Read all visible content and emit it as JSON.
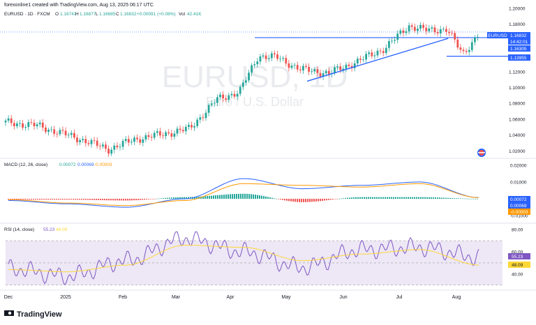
{
  "header": {
    "credit": "forexonline1 created with TradingView.com, Aug 13, 2025 06:17 UTC",
    "symbol_line": "EURUSD · 1D · FXCM",
    "ohlc": {
      "o_label": "O",
      "o": "1.16741",
      "h_label": "H",
      "h": "1.16877",
      "l_label": "L",
      "l": "1.16685",
      "c_label": "C",
      "c": "1.16832",
      "change": "+0.00091 (+0.08%)",
      "vol_label": "Vol",
      "vol": "42.41K"
    }
  },
  "watermark": {
    "symbol": "EURUSD, 1D",
    "description": "Euro / U.S. Dollar"
  },
  "price_axis": {
    "ticks": [
      "1.20000",
      "1.18000",
      "1.16000",
      "1.14000",
      "1.12000",
      "1.10000",
      "1.08000",
      "1.06000",
      "1.04000",
      "1.02000"
    ]
  },
  "price_labels": {
    "symbol_tag": "EURUSD",
    "last_price": "1.16832",
    "countdown": "14:42:01",
    "level_1": "1.16305",
    "level_2": "1.13955"
  },
  "macd": {
    "label": "MACD (12, 26, close)",
    "values": [
      "0.00072",
      "0.00069",
      "-0.00003"
    ],
    "axis_ticks": [
      "0.02000",
      "0.01000",
      "-0.01000"
    ],
    "tags": [
      "0.00072",
      "0.00069",
      "-0.00003"
    ]
  },
  "rsi": {
    "label": "RSI (14, close)",
    "values": [
      "55.23",
      "48.09"
    ],
    "axis_ticks": [
      "80.00",
      "60.00",
      "40.00"
    ],
    "tags": [
      "55.23",
      "48.09"
    ]
  },
  "time_axis": {
    "ticks": [
      "Dec",
      "2025",
      "Feb",
      "Mar",
      "Apr",
      "May",
      "Jun",
      "Jul",
      "Aug"
    ]
  },
  "branding": {
    "logo_text": "TradingView"
  },
  "colors": {
    "up": "#26a69a",
    "down": "#ef5350",
    "trendline": "#2962ff",
    "macd_line": "#2962ff",
    "signal_line": "#ff9800",
    "rsi_line": "#7e57c2",
    "rsi_ma": "#fdd835",
    "rsi_band": "#ede7f6",
    "label_blue": "#2962ff"
  },
  "chart_data": [
    {
      "type": "candlestick",
      "title": "EURUSD, 1D",
      "ylim": [
        1.015,
        1.2
      ],
      "x": [
        "Dec",
        "2025",
        "Feb",
        "Mar",
        "Apr",
        "May",
        "Jun",
        "Jul",
        "Aug"
      ],
      "series": [
        {
          "name": "EURUSD",
          "path": [
            [
              "Dec",
              1.052
            ],
            [
              "2025",
              1.035
            ],
            [
              "2025",
              1.022
            ],
            [
              "Feb",
              1.035
            ],
            [
              "Feb",
              1.041
            ],
            [
              "Mar",
              1.048
            ],
            [
              "Mar",
              1.085
            ],
            [
              "Apr",
              1.095
            ],
            [
              "Apr",
              1.14
            ],
            [
              "Apr",
              1.138
            ],
            [
              "May",
              1.123
            ],
            [
              "May",
              1.118
            ],
            [
              "Jun",
              1.133
            ],
            [
              "Jun",
              1.15
            ],
            [
              "Jul",
              1.178
            ],
            [
              "Jul",
              1.172
            ],
            [
              "Jul",
              1.174
            ],
            [
              "Aug",
              1.142
            ],
            [
              "Aug",
              1.16832
            ]
          ]
        }
      ],
      "horizontal_levels": [
        1.16305,
        1.13955
      ],
      "trendline": [
        [
          "May",
          1.108
        ],
        [
          "Aug",
          1.162
        ]
      ]
    },
    {
      "type": "bar",
      "title": "MACD (12, 26, close)",
      "ylim": [
        -0.012,
        0.022
      ],
      "x": [
        "Dec",
        "2025",
        "Feb",
        "Mar",
        "Apr",
        "May",
        "Jun",
        "Jul",
        "Aug"
      ],
      "series": [
        {
          "name": "MACD",
          "values": [
            -0.001,
            -0.003,
            -0.005,
            0.0,
            0.012,
            0.006,
            0.008,
            0.01,
            0.00072
          ]
        },
        {
          "name": "Signal",
          "values": [
            -0.0005,
            -0.0025,
            -0.004,
            -0.001,
            0.009,
            0.008,
            0.007,
            0.009,
            0.00069
          ]
        },
        {
          "name": "Histogram",
          "values": [
            -0.0005,
            -0.0005,
            -0.001,
            0.001,
            0.003,
            -0.002,
            0.001,
            0.001,
            -3e-05
          ]
        }
      ]
    },
    {
      "type": "line",
      "title": "RSI (14, close)",
      "ylim": [
        28,
        82
      ],
      "bands": [
        70,
        30
      ],
      "x": [
        "Dec",
        "2025",
        "Feb",
        "Mar",
        "Apr",
        "May",
        "Jun",
        "Jul",
        "Aug"
      ],
      "series": [
        {
          "name": "RSI",
          "values": [
            45,
            38,
            52,
            72,
            60,
            46,
            62,
            64,
            55.23
          ]
        },
        {
          "name": "RSI MA",
          "values": [
            44,
            42,
            48,
            66,
            64,
            52,
            58,
            62,
            48.09
          ]
        }
      ]
    }
  ]
}
